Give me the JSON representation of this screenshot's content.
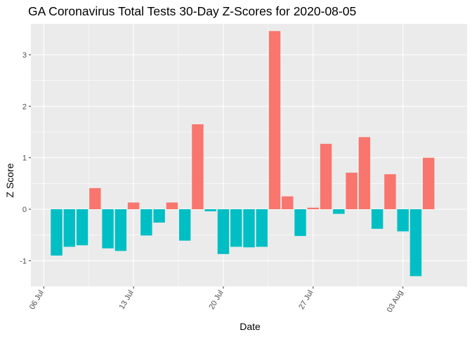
{
  "chart_data": {
    "type": "bar",
    "title": "GA Coronavirus Total Tests 30-Day Z-Scores for 2020-08-05",
    "xlabel": "Date",
    "ylabel": "Z Score",
    "ylim": [
      -1.5,
      3.6
    ],
    "y_ticks": [
      -1,
      0,
      1,
      2,
      3
    ],
    "x_ticks": [
      {
        "date": "2020-07-06",
        "label": "06 Jul"
      },
      {
        "date": "2020-07-13",
        "label": "13 Jul"
      },
      {
        "date": "2020-07-20",
        "label": "20 Jul"
      },
      {
        "date": "2020-07-27",
        "label": "27 Jul"
      },
      {
        "date": "2020-08-03",
        "label": "03 Aug"
      }
    ],
    "x_range": [
      "2020-07-05",
      "2020-08-08"
    ],
    "grid": true,
    "positive_color": "#F8766D",
    "negative_color": "#00BFC4",
    "panel_background": "#EBEBEB",
    "bars": [
      {
        "date": "2020-07-07",
        "value": -0.9
      },
      {
        "date": "2020-07-08",
        "value": -0.73
      },
      {
        "date": "2020-07-09",
        "value": -0.7
      },
      {
        "date": "2020-07-10",
        "value": 0.41
      },
      {
        "date": "2020-07-11",
        "value": -0.76
      },
      {
        "date": "2020-07-12",
        "value": -0.81
      },
      {
        "date": "2020-07-13",
        "value": 0.13
      },
      {
        "date": "2020-07-14",
        "value": -0.51
      },
      {
        "date": "2020-07-15",
        "value": -0.26
      },
      {
        "date": "2020-07-16",
        "value": 0.13
      },
      {
        "date": "2020-07-17",
        "value": -0.61
      },
      {
        "date": "2020-07-18",
        "value": 1.65
      },
      {
        "date": "2020-07-19",
        "value": -0.04
      },
      {
        "date": "2020-07-20",
        "value": -0.87
      },
      {
        "date": "2020-07-21",
        "value": -0.73
      },
      {
        "date": "2020-07-22",
        "value": -0.74
      },
      {
        "date": "2020-07-23",
        "value": -0.73
      },
      {
        "date": "2020-07-24",
        "value": 3.46
      },
      {
        "date": "2020-07-25",
        "value": 0.25
      },
      {
        "date": "2020-07-26",
        "value": -0.52
      },
      {
        "date": "2020-07-27",
        "value": 0.03
      },
      {
        "date": "2020-07-28",
        "value": 1.27
      },
      {
        "date": "2020-07-29",
        "value": -0.09
      },
      {
        "date": "2020-07-30",
        "value": 0.71
      },
      {
        "date": "2020-07-31",
        "value": 1.4
      },
      {
        "date": "2020-08-01",
        "value": -0.38
      },
      {
        "date": "2020-08-02",
        "value": 0.68
      },
      {
        "date": "2020-08-03",
        "value": -0.43
      },
      {
        "date": "2020-08-04",
        "value": -1.3
      },
      {
        "date": "2020-08-05",
        "value": 1.0
      }
    ]
  }
}
